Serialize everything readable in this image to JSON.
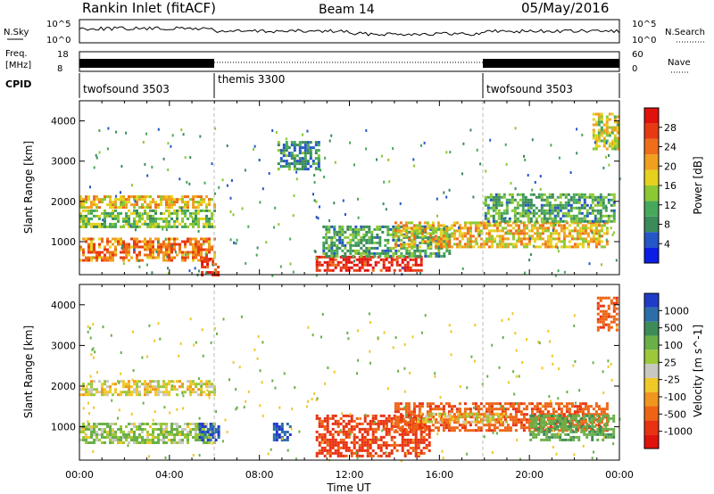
{
  "header": {
    "station": "Rankin Inlet (fitACF)",
    "beam": "Beam 14",
    "date": "05/May/2016"
  },
  "panels": {
    "nsky_label": "N.Sky",
    "nsky_top": "10^5",
    "nsky_bottom": "10^0",
    "nsearch_label": "N.Search",
    "nsearch_top": "10^5",
    "nsearch_bottom": "10^0",
    "freq_label_1": "Freq.",
    "freq_label_2": "[MHz]",
    "freq_top": "18",
    "freq_bottom": "8",
    "nave_label": "Nave",
    "nave_top": "60",
    "nave_bottom": "0",
    "cpid_label": "CPID",
    "cpid_segments": [
      {
        "name": "twofsound 3503",
        "start_h": 0,
        "end_h": 6
      },
      {
        "name": "themis 3300",
        "start_h": 6,
        "end_h": 18
      },
      {
        "name": "twofsound 3503",
        "start_h": 18,
        "end_h": 24
      }
    ]
  },
  "axes": {
    "y_label": "Slant Range [km]",
    "x_label": "Time UT",
    "y_ticks": [
      "1000",
      "2000",
      "3000",
      "4000"
    ],
    "x_ticks": [
      "00:00",
      "04:00",
      "08:00",
      "12:00",
      "16:00",
      "20:00",
      "00:00"
    ]
  },
  "colorbars": {
    "power": {
      "label": "Power [dB]",
      "ticks": [
        "4",
        "8",
        "12",
        "16",
        "20",
        "24",
        "28"
      ],
      "colors": [
        "#0b1ee6",
        "#2456c8",
        "#3a8a5a",
        "#46a85a",
        "#8cc832",
        "#e6d21e",
        "#f0a01e",
        "#ee6e1a",
        "#e83a12",
        "#e0120c"
      ]
    },
    "velocity": {
      "label": "Velocity [m s^-1]",
      "ticks": [
        "1000",
        "500",
        "100",
        "25",
        "-25",
        "-100",
        "-500",
        "-1000"
      ],
      "colors": [
        "#1f3cc8",
        "#2d6ea8",
        "#3c8c5a",
        "#6ab048",
        "#9cc83a",
        "#c8c8c0",
        "#f0c828",
        "#f0961e",
        "#ee6414",
        "#e83212",
        "#e0120c"
      ]
    }
  },
  "chart_data": [
    {
      "type": "heatmap",
      "title": "Rankin Inlet (fitACF)  Beam 14  05/May/2016",
      "xlabel": "Time UT",
      "ylabel": "Slant Range [km]",
      "xlim": [
        0,
        24
      ],
      "ylim": [
        180,
        4500
      ],
      "quantity": "Power [dB]",
      "zlim": [
        0,
        30
      ],
      "regions": [
        {
          "t0": 0.0,
          "t1": 6.0,
          "r0": 550,
          "r1": 1100,
          "value": 22
        },
        {
          "t0": 0.0,
          "t1": 6.0,
          "r0": 1400,
          "r1": 1800,
          "value": 12
        },
        {
          "t0": 0.0,
          "t1": 6.0,
          "r0": 1850,
          "r1": 2150,
          "value": 18
        },
        {
          "t0": 5.4,
          "t1": 6.2,
          "r0": 200,
          "r1": 600,
          "value": 26
        },
        {
          "t0": 10.5,
          "t1": 15.2,
          "r0": 300,
          "r1": 650,
          "value": 28
        },
        {
          "t0": 10.8,
          "t1": 16.4,
          "r0": 650,
          "r1": 1400,
          "value": 10
        },
        {
          "t0": 14.0,
          "t1": 23.5,
          "r0": 900,
          "r1": 1500,
          "value": 18
        },
        {
          "t0": 18.0,
          "t1": 23.8,
          "r0": 1500,
          "r1": 2200,
          "value": 10
        },
        {
          "t0": 8.8,
          "t1": 10.6,
          "r0": 2800,
          "r1": 3500,
          "value": 8
        },
        {
          "t0": 22.8,
          "t1": 23.9,
          "r0": 3300,
          "r1": 4200,
          "value": 16
        }
      ]
    },
    {
      "type": "heatmap",
      "xlabel": "Time UT",
      "ylabel": "Slant Range [km]",
      "xlim": [
        0,
        24
      ],
      "ylim": [
        180,
        4500
      ],
      "quantity": "Velocity [m s^-1]",
      "regions": [
        {
          "t0": 0.0,
          "t1": 6.0,
          "r0": 600,
          "r1": 1100,
          "value": 100
        },
        {
          "t0": 0.0,
          "t1": 6.0,
          "r0": 1800,
          "r1": 2150,
          "value": 0
        },
        {
          "t0": 5.3,
          "t1": 6.2,
          "r0": 700,
          "r1": 1100,
          "value": 1000
        },
        {
          "t0": 8.6,
          "t1": 9.4,
          "r0": 700,
          "r1": 1100,
          "value": 1000
        },
        {
          "t0": 10.5,
          "t1": 15.5,
          "r0": 300,
          "r1": 1300,
          "value": -300
        },
        {
          "t0": 14.0,
          "t1": 23.5,
          "r0": 900,
          "r1": 1600,
          "value": -200
        },
        {
          "t0": 15.0,
          "t1": 19.0,
          "r0": 1100,
          "r1": 1350,
          "value": 0
        },
        {
          "t0": 20.0,
          "t1": 23.8,
          "r0": 700,
          "r1": 1300,
          "value": 200
        },
        {
          "t0": 23.0,
          "t1": 23.9,
          "r0": 3400,
          "r1": 4200,
          "value": -200
        }
      ]
    }
  ]
}
